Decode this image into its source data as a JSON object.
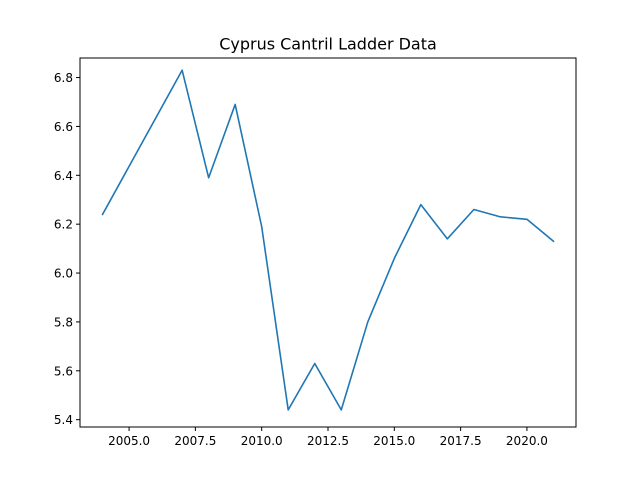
{
  "chart_data": {
    "type": "line",
    "title": "Cyprus Cantril Ladder Data",
    "xlabel": "",
    "ylabel": "",
    "xlim": [
      2003.15,
      2021.85
    ],
    "ylim": [
      5.37,
      6.88
    ],
    "grid": false,
    "legend": "none",
    "x_ticks": [
      2005.0,
      2007.5,
      2010.0,
      2012.5,
      2015.0,
      2017.5,
      2020.0
    ],
    "x_tick_labels": [
      "2005.0",
      "2007.5",
      "2010.0",
      "2012.5",
      "2015.0",
      "2017.5",
      "2020.0"
    ],
    "y_ticks": [
      5.4,
      5.6,
      5.8,
      6.0,
      6.2,
      6.4,
      6.6,
      6.8
    ],
    "y_tick_labels": [
      "5.4",
      "5.6",
      "5.8",
      "6.0",
      "6.2",
      "6.4",
      "6.6",
      "6.8"
    ],
    "series": [
      {
        "color": "#1f77b4",
        "x": [
          2004,
          2007,
          2008,
          2009,
          2010,
          2011,
          2012,
          2013,
          2014,
          2015,
          2016,
          2017,
          2018,
          2019,
          2020,
          2021
        ],
        "y": [
          6.24,
          6.83,
          6.39,
          6.69,
          6.19,
          5.44,
          5.63,
          5.44,
          5.8,
          6.06,
          6.28,
          6.14,
          6.26,
          6.23,
          6.22,
          6.13
        ]
      }
    ]
  }
}
